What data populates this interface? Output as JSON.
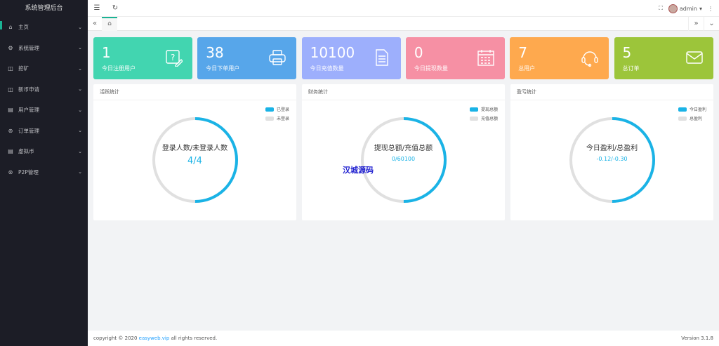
{
  "sidebar": {
    "title": "系统管理后台",
    "items": [
      {
        "label": "主页",
        "icon": "home-icon",
        "glyph": "⌂"
      },
      {
        "label": "系统管理",
        "icon": "gear-icon",
        "glyph": "⚙"
      },
      {
        "label": "挖矿",
        "icon": "box-icon",
        "glyph": "◫"
      },
      {
        "label": "新币申请",
        "icon": "box-icon",
        "glyph": "◫"
      },
      {
        "label": "用户管理",
        "icon": "list-icon",
        "glyph": "▤"
      },
      {
        "label": "订单管理",
        "icon": "circle-icon",
        "glyph": "⊛"
      },
      {
        "label": "虚拟币",
        "icon": "list-icon",
        "glyph": "▤"
      },
      {
        "label": "P2P管理",
        "icon": "circle-icon",
        "glyph": "⊛"
      }
    ]
  },
  "topbar": {
    "user": "admin"
  },
  "cards": [
    {
      "value": "1",
      "label": "今日注册用户",
      "color": "#42d5b0",
      "icon": "edit-question-icon"
    },
    {
      "value": "38",
      "label": "今日下单用户",
      "color": "#57a6ea",
      "icon": "printer-icon"
    },
    {
      "value": "10100",
      "label": "今日充值数量",
      "color": "#9daffc",
      "icon": "document-icon"
    },
    {
      "value": "0",
      "label": "今日提现数量",
      "color": "#f690a4",
      "icon": "calendar-icon"
    },
    {
      "value": "7",
      "label": "总用户",
      "color": "#fea94e",
      "icon": "headset-icon"
    },
    {
      "value": "5",
      "label": "总订单",
      "color": "#9cc53a",
      "icon": "mail-icon"
    }
  ],
  "panels": [
    {
      "title": "活跃统计",
      "center_title": "登录人数/未登录人数",
      "center_value": "4/4",
      "legend": [
        "已登录",
        "未登录"
      ],
      "fill_fraction": 0.5
    },
    {
      "title": "财务统计",
      "center_title": "提现总额/充值总额",
      "center_value": "0/60100",
      "legend": [
        "提现总额",
        "充值总额"
      ],
      "fill_fraction": 0.5
    },
    {
      "title": "盈亏统计",
      "center_title": "今日盈利/总盈利",
      "center_value": "-0.12/-0.30",
      "legend": [
        "今日盈利",
        "总盈利"
      ],
      "fill_fraction": 0.5
    }
  ],
  "colors": {
    "primary": "#1ab3e6",
    "secondary": "#e0e0e0",
    "accent": "#1ab394"
  },
  "watermark": "汉城源码",
  "footer": {
    "copyright_prefix": "copyright © 2020 ",
    "link": "easyweb.vip",
    "copyright_suffix": " all rights reserved.",
    "version": "Version 3.1.8"
  }
}
